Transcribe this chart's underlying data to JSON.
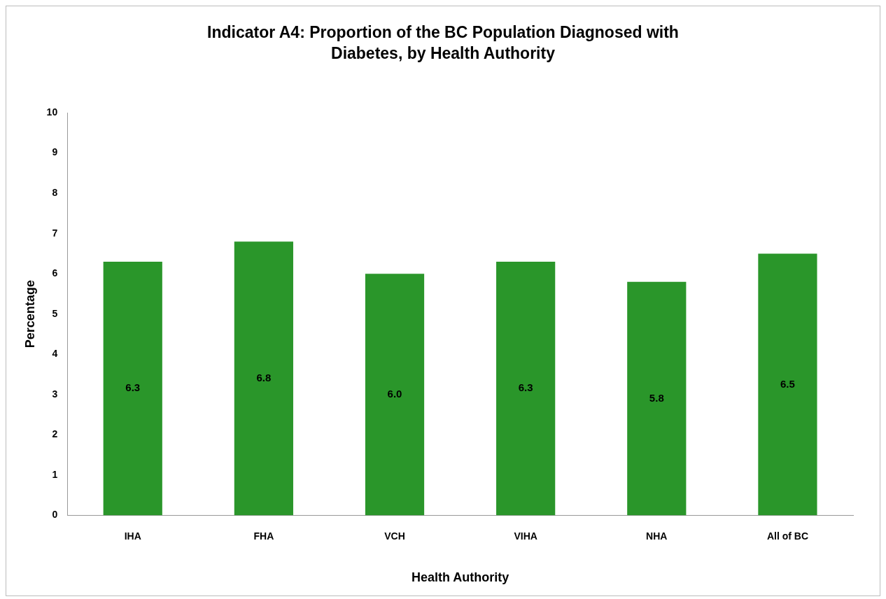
{
  "chart_data": {
    "type": "bar",
    "title": "Indicator A4: Proportion of the BC Population Diagnosed with Diabetes, by Health Authority",
    "xlabel": "Health Authority",
    "ylabel": "Percentage",
    "categories": [
      "IHA",
      "FHA",
      "VCH",
      "VIHA",
      "NHA",
      "All of BC"
    ],
    "values": [
      6.3,
      6.8,
      6.0,
      6.3,
      5.8,
      6.5
    ],
    "value_labels": [
      "6.3",
      "6.8",
      "6.0",
      "6.3",
      "5.8",
      "6.5"
    ],
    "color": "#2a962a",
    "ylim": [
      0,
      10
    ],
    "yticks": [
      0,
      1,
      2,
      3,
      4,
      5,
      6,
      7,
      8,
      9,
      10
    ],
    "grid": false,
    "legend": false
  }
}
